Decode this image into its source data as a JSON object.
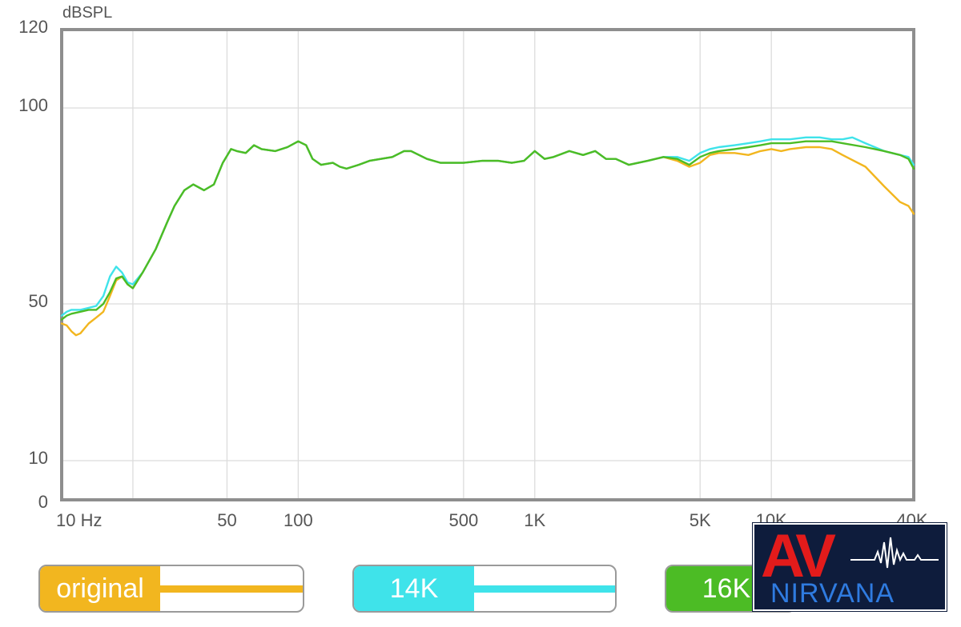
{
  "chart_data": {
    "type": "line",
    "ylabel": "dBSPL",
    "xlabel": "",
    "x_scale": "log",
    "xlim": [
      10,
      40000
    ],
    "ylim": [
      0,
      120
    ],
    "y_ticks": [
      {
        "value": 0,
        "label": "0"
      },
      {
        "value": 10,
        "label": "10"
      },
      {
        "value": 50,
        "label": "50"
      },
      {
        "value": 100,
        "label": "100"
      },
      {
        "value": 120,
        "label": "120"
      }
    ],
    "x_ticks": [
      {
        "value": 10,
        "label": "10  Hz"
      },
      {
        "value": 50,
        "label": "50"
      },
      {
        "value": 100,
        "label": "100"
      },
      {
        "value": 500,
        "label": "500"
      },
      {
        "value": 1000,
        "label": "1K"
      },
      {
        "value": 5000,
        "label": "5K"
      },
      {
        "value": 10000,
        "label": "10K"
      },
      {
        "value": 40000,
        "label": "40K"
      }
    ],
    "grid_x": [
      20,
      50,
      100,
      500,
      1000,
      5000,
      10000
    ],
    "grid_y": [
      10,
      50,
      100
    ],
    "grid": true,
    "legend_position": "bottom",
    "series": [
      {
        "name": "original",
        "color": "#f2b61f",
        "points": [
          [
            10,
            45
          ],
          [
            10.5,
            44.5
          ],
          [
            11,
            43
          ],
          [
            11.5,
            42
          ],
          [
            12,
            42.5
          ],
          [
            13,
            45
          ],
          [
            14,
            46.5
          ],
          [
            15,
            48
          ],
          [
            16,
            52
          ],
          [
            17,
            56
          ],
          [
            18,
            57
          ],
          [
            19,
            55
          ],
          [
            20,
            54
          ],
          [
            22,
            58
          ],
          [
            25,
            64
          ],
          [
            28,
            71
          ],
          [
            30,
            75
          ],
          [
            33,
            79
          ],
          [
            36,
            80.5
          ],
          [
            40,
            79
          ],
          [
            44,
            80.5
          ],
          [
            48,
            86
          ],
          [
            52,
            89.5
          ],
          [
            55,
            89
          ],
          [
            60,
            88.5
          ],
          [
            65,
            90.5
          ],
          [
            70,
            89.5
          ],
          [
            80,
            89
          ],
          [
            90,
            90
          ],
          [
            100,
            91.5
          ],
          [
            108,
            90.5
          ],
          [
            115,
            87
          ],
          [
            125,
            85.5
          ],
          [
            140,
            86
          ],
          [
            150,
            85
          ],
          [
            160,
            84.5
          ],
          [
            180,
            85.5
          ],
          [
            200,
            86.5
          ],
          [
            250,
            87.5
          ],
          [
            280,
            89
          ],
          [
            300,
            89
          ],
          [
            350,
            87
          ],
          [
            400,
            86
          ],
          [
            450,
            86
          ],
          [
            500,
            86
          ],
          [
            600,
            86.5
          ],
          [
            700,
            86.5
          ],
          [
            800,
            86
          ],
          [
            900,
            86.5
          ],
          [
            1000,
            89
          ],
          [
            1100,
            87
          ],
          [
            1200,
            87.5
          ],
          [
            1400,
            89
          ],
          [
            1600,
            88
          ],
          [
            1800,
            89
          ],
          [
            2000,
            87
          ],
          [
            2200,
            87
          ],
          [
            2500,
            85.5
          ],
          [
            3000,
            86.5
          ],
          [
            3500,
            87.5
          ],
          [
            4000,
            86.5
          ],
          [
            4500,
            85
          ],
          [
            5000,
            86
          ],
          [
            5500,
            88
          ],
          [
            6000,
            88.5
          ],
          [
            7000,
            88.5
          ],
          [
            8000,
            88
          ],
          [
            9000,
            89
          ],
          [
            10000,
            89.5
          ],
          [
            11000,
            89
          ],
          [
            12000,
            89.5
          ],
          [
            14000,
            90
          ],
          [
            16000,
            90
          ],
          [
            18000,
            89.5
          ],
          [
            20000,
            88
          ],
          [
            25000,
            85
          ],
          [
            30000,
            80
          ],
          [
            35000,
            76
          ],
          [
            38000,
            75
          ],
          [
            40000,
            73
          ]
        ]
      },
      {
        "name": "14K",
        "color": "#3fe3ea",
        "points": [
          [
            10,
            47
          ],
          [
            10.5,
            48
          ],
          [
            11,
            48.5
          ],
          [
            12,
            48.5
          ],
          [
            13,
            49
          ],
          [
            14,
            49.5
          ],
          [
            15,
            52
          ],
          [
            16,
            57
          ],
          [
            17,
            59.5
          ],
          [
            18,
            58
          ],
          [
            19,
            55.5
          ],
          [
            20,
            55
          ],
          [
            22,
            58
          ],
          [
            25,
            64
          ],
          [
            28,
            71
          ],
          [
            30,
            75
          ],
          [
            33,
            79
          ],
          [
            36,
            80.5
          ],
          [
            40,
            79
          ],
          [
            44,
            80.5
          ],
          [
            48,
            86
          ],
          [
            52,
            89.5
          ],
          [
            55,
            89
          ],
          [
            60,
            88.5
          ],
          [
            65,
            90.5
          ],
          [
            70,
            89.5
          ],
          [
            80,
            89
          ],
          [
            90,
            90
          ],
          [
            100,
            91.5
          ],
          [
            108,
            90.5
          ],
          [
            115,
            87
          ],
          [
            125,
            85.5
          ],
          [
            140,
            86
          ],
          [
            150,
            85
          ],
          [
            160,
            84.5
          ],
          [
            180,
            85.5
          ],
          [
            200,
            86.5
          ],
          [
            250,
            87.5
          ],
          [
            280,
            89
          ],
          [
            300,
            89
          ],
          [
            350,
            87
          ],
          [
            400,
            86
          ],
          [
            450,
            86
          ],
          [
            500,
            86
          ],
          [
            600,
            86.5
          ],
          [
            700,
            86.5
          ],
          [
            800,
            86
          ],
          [
            900,
            86.5
          ],
          [
            1000,
            89
          ],
          [
            1100,
            87
          ],
          [
            1200,
            87.5
          ],
          [
            1400,
            89
          ],
          [
            1600,
            88
          ],
          [
            1800,
            89
          ],
          [
            2000,
            87
          ],
          [
            2200,
            87
          ],
          [
            2500,
            85.5
          ],
          [
            3000,
            86.5
          ],
          [
            3500,
            87.5
          ],
          [
            4000,
            87.5
          ],
          [
            4500,
            86.5
          ],
          [
            5000,
            88.5
          ],
          [
            5500,
            89.5
          ],
          [
            6000,
            90
          ],
          [
            7000,
            90.5
          ],
          [
            8000,
            91
          ],
          [
            9000,
            91.5
          ],
          [
            10000,
            92
          ],
          [
            11000,
            92
          ],
          [
            12000,
            92
          ],
          [
            14000,
            92.5
          ],
          [
            16000,
            92.5
          ],
          [
            18000,
            92
          ],
          [
            20000,
            92
          ],
          [
            22000,
            92.5
          ],
          [
            25000,
            91
          ],
          [
            30000,
            89
          ],
          [
            35000,
            88
          ],
          [
            38000,
            87.5
          ],
          [
            40000,
            85.5
          ]
        ]
      },
      {
        "name": "16K",
        "color": "#4cbc25",
        "points": [
          [
            10,
            46
          ],
          [
            10.5,
            47
          ],
          [
            11,
            47.5
          ],
          [
            12,
            48
          ],
          [
            13,
            48.5
          ],
          [
            14,
            48.5
          ],
          [
            15,
            50
          ],
          [
            16,
            53
          ],
          [
            17,
            56.5
          ],
          [
            18,
            57
          ],
          [
            19,
            55
          ],
          [
            20,
            54
          ],
          [
            22,
            58
          ],
          [
            25,
            64
          ],
          [
            28,
            71
          ],
          [
            30,
            75
          ],
          [
            33,
            79
          ],
          [
            36,
            80.5
          ],
          [
            40,
            79
          ],
          [
            44,
            80.5
          ],
          [
            48,
            86
          ],
          [
            52,
            89.5
          ],
          [
            55,
            89
          ],
          [
            60,
            88.5
          ],
          [
            65,
            90.5
          ],
          [
            70,
            89.5
          ],
          [
            80,
            89
          ],
          [
            90,
            90
          ],
          [
            100,
            91.5
          ],
          [
            108,
            90.5
          ],
          [
            115,
            87
          ],
          [
            125,
            85.5
          ],
          [
            140,
            86
          ],
          [
            150,
            85
          ],
          [
            160,
            84.5
          ],
          [
            180,
            85.5
          ],
          [
            200,
            86.5
          ],
          [
            250,
            87.5
          ],
          [
            280,
            89
          ],
          [
            300,
            89
          ],
          [
            350,
            87
          ],
          [
            400,
            86
          ],
          [
            450,
            86
          ],
          [
            500,
            86
          ],
          [
            600,
            86.5
          ],
          [
            700,
            86.5
          ],
          [
            800,
            86
          ],
          [
            900,
            86.5
          ],
          [
            1000,
            89
          ],
          [
            1100,
            87
          ],
          [
            1200,
            87.5
          ],
          [
            1400,
            89
          ],
          [
            1600,
            88
          ],
          [
            1800,
            89
          ],
          [
            2000,
            87
          ],
          [
            2200,
            87
          ],
          [
            2500,
            85.5
          ],
          [
            3000,
            86.5
          ],
          [
            3500,
            87.5
          ],
          [
            4000,
            87
          ],
          [
            4500,
            85.5
          ],
          [
            5000,
            87.5
          ],
          [
            5500,
            88.5
          ],
          [
            6000,
            89
          ],
          [
            7000,
            89.5
          ],
          [
            8000,
            90
          ],
          [
            9000,
            90.5
          ],
          [
            10000,
            91
          ],
          [
            11000,
            91
          ],
          [
            12000,
            91
          ],
          [
            14000,
            91.5
          ],
          [
            16000,
            91.5
          ],
          [
            18000,
            91.5
          ],
          [
            20000,
            91
          ],
          [
            25000,
            90
          ],
          [
            30000,
            89
          ],
          [
            35000,
            88
          ],
          [
            38000,
            87
          ],
          [
            40000,
            84.5
          ]
        ]
      }
    ]
  },
  "legend": [
    {
      "label": "original",
      "color": "#f2b61f"
    },
    {
      "label": "14K",
      "color": "#3fe3ea"
    },
    {
      "label": "16K",
      "color": "#4cbc25"
    }
  ],
  "logo": {
    "mark": "AV",
    "word": "NIRVANA"
  }
}
